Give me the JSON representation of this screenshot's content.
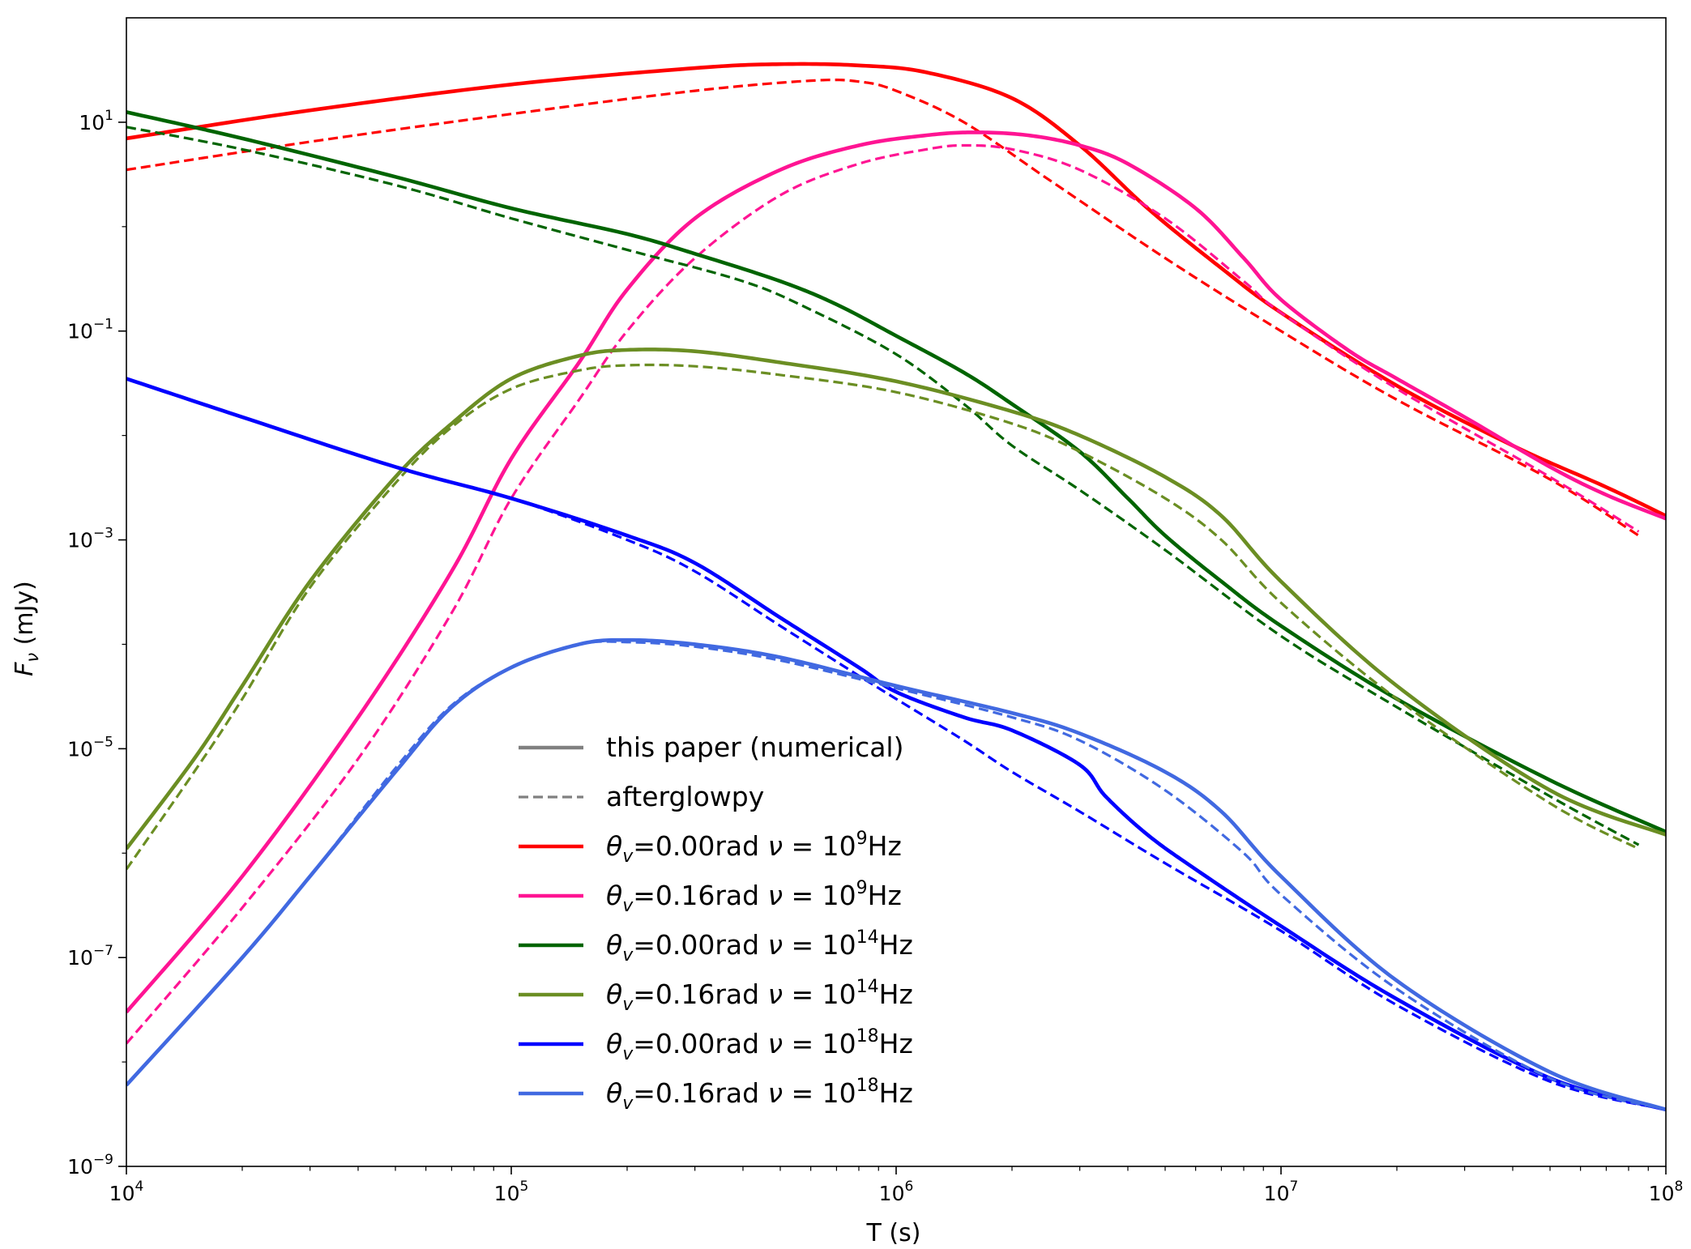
{
  "chart_data": {
    "type": "line",
    "title": "",
    "xlabel": "T (s)",
    "ylabel_main": "F",
    "ylabel_sub": "ν",
    "ylabel_unit": " (mJy)",
    "xscale": "log",
    "yscale": "log",
    "xlim": [
      10000,
      100000000
    ],
    "ylim": [
      1e-09,
      100
    ],
    "x_ticks": [
      {
        "base": "10",
        "exp": "4",
        "value": 10000
      },
      {
        "base": "10",
        "exp": "5",
        "value": 100000
      },
      {
        "base": "10",
        "exp": "6",
        "value": 1000000
      },
      {
        "base": "10",
        "exp": "7",
        "value": 10000000
      },
      {
        "base": "10",
        "exp": "8",
        "value": 100000000
      }
    ],
    "y_ticks": [
      {
        "base": "10",
        "exp": "−9",
        "value": 1e-09
      },
      {
        "base": "10",
        "exp": "−7",
        "value": 1e-07
      },
      {
        "base": "10",
        "exp": "−5",
        "value": 1e-05
      },
      {
        "base": "10",
        "exp": "−3",
        "value": 0.001
      },
      {
        "base": "10",
        "exp": "−1",
        "value": 0.1
      },
      {
        "base": "10",
        "exp": "1",
        "value": 10
      }
    ],
    "legend": {
      "placement": "center-bottom",
      "entries": [
        {
          "label": "this paper (numerical)",
          "color": "#808080",
          "dashed": false
        },
        {
          "label": "afterglowpy",
          "color": "#808080",
          "dashed": true
        },
        {
          "theta": "θ",
          "theta_sub": "v",
          "mid": "=0.00rad ",
          "nu": "ν",
          "eq": " = 10",
          "exp": "9",
          "unit": "Hz",
          "color": "#ff0000",
          "dashed": false
        },
        {
          "theta": "θ",
          "theta_sub": "v",
          "mid": "=0.16rad ",
          "nu": "ν",
          "eq": " = 10",
          "exp": "9",
          "unit": "Hz",
          "color": "#ff1493",
          "dashed": false
        },
        {
          "theta": "θ",
          "theta_sub": "v",
          "mid": "=0.00rad ",
          "nu": "ν",
          "eq": " = 10",
          "exp": "14",
          "unit": "Hz",
          "color": "#006400",
          "dashed": false
        },
        {
          "theta": "θ",
          "theta_sub": "v",
          "mid": "=0.16rad ",
          "nu": "ν",
          "eq": " = 10",
          "exp": "14",
          "unit": "Hz",
          "color": "#6b8e23",
          "dashed": false
        },
        {
          "theta": "θ",
          "theta_sub": "v",
          "mid": "=0.00rad ",
          "nu": "ν",
          "eq": " = 10",
          "exp": "18",
          "unit": "Hz",
          "color": "#0000ff",
          "dashed": false
        },
        {
          "theta": "θ",
          "theta_sub": "v",
          "mid": "=0.16rad ",
          "nu": "ν",
          "eq": " = 10",
          "exp": "18",
          "unit": "Hz",
          "color": "#4169e1",
          "dashed": false
        }
      ]
    },
    "series": [
      {
        "name": "θv=0.00rad ν=1e9Hz (this paper)",
        "color": "#ff0000",
        "dashed": false,
        "points": [
          [
            10000,
            7
          ],
          [
            30000,
            13
          ],
          [
            100000,
            23
          ],
          [
            300000,
            33
          ],
          [
            500000,
            36
          ],
          [
            800000,
            35
          ],
          [
            1200000,
            30
          ],
          [
            2000000,
            17
          ],
          [
            3000000,
            6
          ],
          [
            4500000,
            1.5
          ],
          [
            7000000,
            0.4
          ],
          [
            10000000,
            0.15
          ],
          [
            20000000,
            0.03
          ],
          [
            40000000,
            0.008
          ],
          [
            70000000,
            0.0032
          ],
          [
            100000000,
            0.0017
          ]
        ]
      },
      {
        "name": "θv=0.00rad ν=1e9Hz (afterglowpy)",
        "color": "#ff0000",
        "dashed": true,
        "points": [
          [
            10000,
            3.5
          ],
          [
            30000,
            6.5
          ],
          [
            100000,
            12
          ],
          [
            300000,
            20
          ],
          [
            600000,
            25
          ],
          [
            800000,
            24.5
          ],
          [
            1000000,
            20
          ],
          [
            1500000,
            10
          ],
          [
            2500000,
            2.8
          ],
          [
            5000000,
            0.5
          ],
          [
            10000000,
            0.1
          ],
          [
            20000000,
            0.022
          ],
          [
            50000000,
            0.0038
          ],
          [
            85000000,
            0.0011
          ]
        ]
      },
      {
        "name": "θv=0.16rad ν=1e9Hz (this paper)",
        "color": "#ff1493",
        "dashed": false,
        "points": [
          [
            10000,
            3e-08
          ],
          [
            20000,
            6e-07
          ],
          [
            40000,
            2e-05
          ],
          [
            70000,
            0.0005
          ],
          [
            100000,
            0.006
          ],
          [
            150000,
            0.05
          ],
          [
            200000,
            0.25
          ],
          [
            300000,
            1.2
          ],
          [
            500000,
            3.5
          ],
          [
            800000,
            6
          ],
          [
            1200000,
            7.5
          ],
          [
            1600000,
            8
          ],
          [
            2200000,
            7.5
          ],
          [
            3000000,
            6
          ],
          [
            4000000,
            4
          ],
          [
            6000000,
            1.5
          ],
          [
            8000000,
            0.5
          ],
          [
            10000000,
            0.2
          ],
          [
            15000000,
            0.065
          ],
          [
            20000000,
            0.035
          ],
          [
            30000000,
            0.015
          ],
          [
            50000000,
            0.005
          ],
          [
            70000000,
            0.0027
          ],
          [
            100000000,
            0.0016
          ]
        ]
      },
      {
        "name": "θv=0.16rad ν=1e9Hz (afterglowpy)",
        "color": "#ff1493",
        "dashed": true,
        "points": [
          [
            10000,
            1.5e-08
          ],
          [
            20000,
            3e-07
          ],
          [
            40000,
            8e-06
          ],
          [
            70000,
            0.0002
          ],
          [
            100000,
            0.0025
          ],
          [
            150000,
            0.022
          ],
          [
            200000,
            0.1
          ],
          [
            300000,
            0.5
          ],
          [
            500000,
            2
          ],
          [
            800000,
            4
          ],
          [
            1200000,
            5.5
          ],
          [
            1500000,
            6
          ],
          [
            2000000,
            5.5
          ],
          [
            3000000,
            3.5
          ],
          [
            5000000,
            1.2
          ],
          [
            8000000,
            0.3
          ],
          [
            10000000,
            0.15
          ],
          [
            20000000,
            0.028
          ],
          [
            50000000,
            0.004
          ],
          [
            85000000,
            0.0012
          ]
        ]
      },
      {
        "name": "θv=0.00rad ν=1e14Hz (this paper)",
        "color": "#006400",
        "dashed": false,
        "points": [
          [
            10000,
            12.5
          ],
          [
            20000,
            7
          ],
          [
            50000,
            3
          ],
          [
            100000,
            1.5
          ],
          [
            200000,
            0.85
          ],
          [
            300000,
            0.55
          ],
          [
            500000,
            0.3
          ],
          [
            700000,
            0.18
          ],
          [
            1000000,
            0.09
          ],
          [
            1500000,
            0.04
          ],
          [
            2000000,
            0.02
          ],
          [
            3000000,
            0.007
          ],
          [
            4000000,
            0.0025
          ],
          [
            5000000,
            0.0011
          ],
          [
            7000000,
            0.0004
          ],
          [
            10000000,
            0.00015
          ],
          [
            20000000,
            3e-05
          ],
          [
            50000000,
            5e-06
          ],
          [
            100000000,
            1.6e-06
          ]
        ]
      },
      {
        "name": "θv=0.00rad ν=1e14Hz (afterglowpy)",
        "color": "#006400",
        "dashed": true,
        "points": [
          [
            10000,
            9
          ],
          [
            20000,
            5.5
          ],
          [
            50000,
            2.5
          ],
          [
            100000,
            1.2
          ],
          [
            200000,
            0.6
          ],
          [
            400000,
            0.3
          ],
          [
            600000,
            0.16
          ],
          [
            1000000,
            0.06
          ],
          [
            1500000,
            0.02
          ],
          [
            2000000,
            0.008
          ],
          [
            3000000,
            0.003
          ],
          [
            5000000,
            0.0008
          ],
          [
            10000000,
            0.00012
          ],
          [
            20000000,
            2.5e-05
          ],
          [
            50000000,
            3.5e-06
          ],
          [
            85000000,
            1.2e-06
          ]
        ]
      },
      {
        "name": "θv=0.16rad ν=1e14Hz (this paper)",
        "color": "#6b8e23",
        "dashed": false,
        "points": [
          [
            10000,
            1.1e-06
          ],
          [
            15000,
            8e-06
          ],
          [
            20000,
            4e-05
          ],
          [
            30000,
            0.0004
          ],
          [
            50000,
            0.004
          ],
          [
            70000,
            0.013
          ],
          [
            100000,
            0.035
          ],
          [
            150000,
            0.058
          ],
          [
            200000,
            0.066
          ],
          [
            300000,
            0.064
          ],
          [
            500000,
            0.05
          ],
          [
            1000000,
            0.033
          ],
          [
            2000000,
            0.017
          ],
          [
            3000000,
            0.01
          ],
          [
            5000000,
            0.004
          ],
          [
            7000000,
            0.0017
          ],
          [
            10000000,
            0.0004
          ],
          [
            20000000,
            4e-05
          ],
          [
            50000000,
            4e-06
          ],
          [
            100000000,
            1.5e-06
          ]
        ]
      },
      {
        "name": "θv=0.16rad ν=1e14Hz (afterglowpy)",
        "color": "#6b8e23",
        "dashed": true,
        "points": [
          [
            10000,
            7e-07
          ],
          [
            15000,
            6e-06
          ],
          [
            20000,
            3e-05
          ],
          [
            30000,
            0.00035
          ],
          [
            50000,
            0.0035
          ],
          [
            70000,
            0.012
          ],
          [
            100000,
            0.028
          ],
          [
            150000,
            0.042
          ],
          [
            200000,
            0.047
          ],
          [
            300000,
            0.046
          ],
          [
            500000,
            0.038
          ],
          [
            1000000,
            0.026
          ],
          [
            2000000,
            0.013
          ],
          [
            3000000,
            0.007
          ],
          [
            5000000,
            0.0025
          ],
          [
            7000000,
            0.001
          ],
          [
            10000000,
            0.00025
          ],
          [
            20000000,
            3e-05
          ],
          [
            50000000,
            3e-06
          ],
          [
            85000000,
            1.1e-06
          ]
        ]
      },
      {
        "name": "θv=0.00rad ν=1e18Hz (this paper)",
        "color": "#0000ff",
        "dashed": false,
        "points": [
          [
            10000,
            0.035
          ],
          [
            20000,
            0.015
          ],
          [
            50000,
            0.005
          ],
          [
            100000,
            0.0025
          ],
          [
            200000,
            0.0011
          ],
          [
            300000,
            0.0006
          ],
          [
            500000,
            0.00018
          ],
          [
            800000,
            6e-05
          ],
          [
            1000000,
            3.5e-05
          ],
          [
            1500000,
            2e-05
          ],
          [
            2000000,
            1.5e-05
          ],
          [
            3000000,
            7e-06
          ],
          [
            3500000,
            3.5e-06
          ],
          [
            4500000,
            1.5e-06
          ],
          [
            6000000,
            7e-07
          ],
          [
            10000000,
            2e-07
          ],
          [
            20000000,
            4e-08
          ],
          [
            50000000,
            7e-09
          ],
          [
            100000000,
            3.5e-09
          ]
        ]
      },
      {
        "name": "θv=0.00rad ν=1e18Hz (afterglowpy)",
        "color": "#0000ff",
        "dashed": true,
        "points": [
          [
            10000,
            0.035
          ],
          [
            20000,
            0.015
          ],
          [
            50000,
            0.005
          ],
          [
            100000,
            0.0025
          ],
          [
            200000,
            0.001
          ],
          [
            300000,
            0.0005
          ],
          [
            500000,
            0.00015
          ],
          [
            800000,
            5e-05
          ],
          [
            1000000,
            3e-05
          ],
          [
            1500000,
            1.2e-05
          ],
          [
            2000000,
            6e-06
          ],
          [
            3000000,
            2.5e-06
          ],
          [
            5000000,
            8e-07
          ],
          [
            10000000,
            1.8e-07
          ],
          [
            20000000,
            3.5e-08
          ],
          [
            50000000,
            6.5e-09
          ],
          [
            100000000,
            3.5e-09
          ]
        ]
      },
      {
        "name": "θv=0.16rad ν=1e18Hz (this paper)",
        "color": "#4169e1",
        "dashed": false,
        "points": [
          [
            10000,
            6e-09
          ],
          [
            20000,
            1e-07
          ],
          [
            30000,
            6e-07
          ],
          [
            50000,
            6e-06
          ],
          [
            70000,
            2.5e-05
          ],
          [
            100000,
            6e-05
          ],
          [
            150000,
            0.0001
          ],
          [
            200000,
            0.00011
          ],
          [
            300000,
            0.0001
          ],
          [
            500000,
            7.5e-05
          ],
          [
            1000000,
            4e-05
          ],
          [
            2000000,
            2.2e-05
          ],
          [
            3000000,
            1.4e-05
          ],
          [
            5000000,
            6e-06
          ],
          [
            7000000,
            2.5e-06
          ],
          [
            10000000,
            6e-07
          ],
          [
            20000000,
            6e-08
          ],
          [
            50000000,
            8e-09
          ],
          [
            100000000,
            3.5e-09
          ]
        ]
      },
      {
        "name": "θv=0.16rad ν=1e18Hz (afterglowpy)",
        "color": "#4169e1",
        "dashed": true,
        "points": [
          [
            10000,
            6e-09
          ],
          [
            20000,
            1e-07
          ],
          [
            30000,
            6e-07
          ],
          [
            50000,
            6.5e-06
          ],
          [
            70000,
            2.6e-05
          ],
          [
            100000,
            6e-05
          ],
          [
            150000,
            0.0001
          ],
          [
            200000,
            0.000105
          ],
          [
            300000,
            9.5e-05
          ],
          [
            500000,
            7e-05
          ],
          [
            1000000,
            3.8e-05
          ],
          [
            2000000,
            2e-05
          ],
          [
            3000000,
            1.2e-05
          ],
          [
            5000000,
            4e-06
          ],
          [
            8000000,
            1e-06
          ],
          [
            10000000,
            4e-07
          ],
          [
            20000000,
            5e-08
          ],
          [
            50000000,
            7e-09
          ],
          [
            100000000,
            3.5e-09
          ]
        ]
      }
    ]
  }
}
